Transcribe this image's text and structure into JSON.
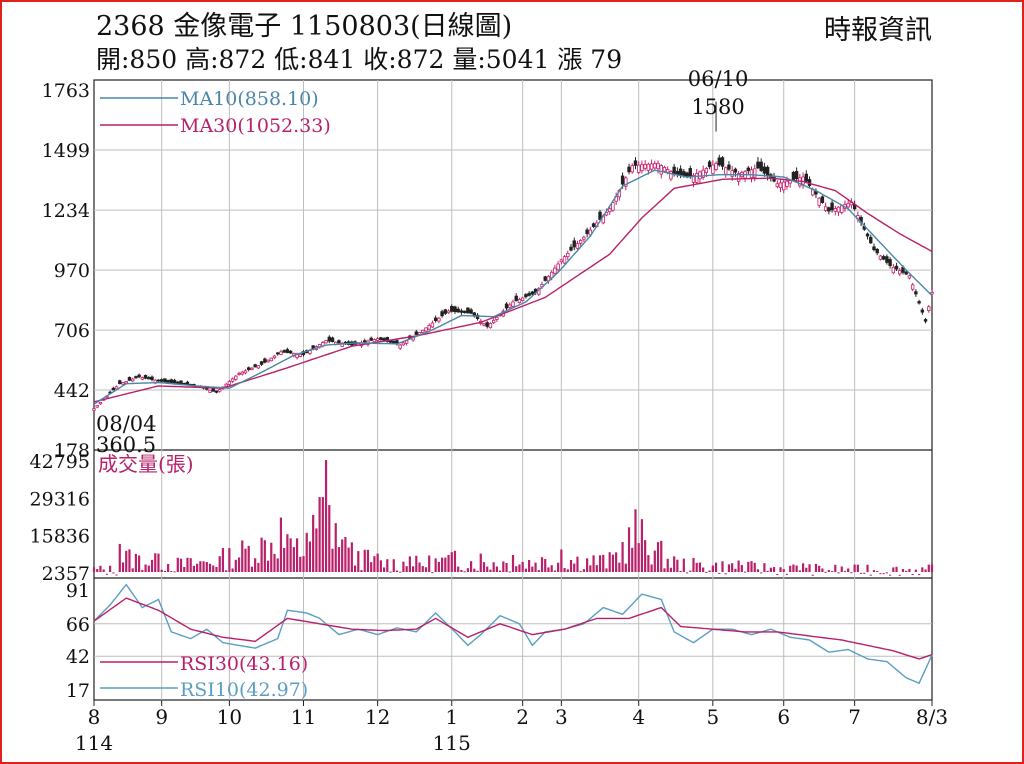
{
  "header": {
    "title": "2368  金像電子 1150803(日線圖)",
    "source": "時報資訊",
    "ohlc": "開:850 高:872 低:841 收:872 量:5041 漲 79"
  },
  "colors": {
    "frame": "#e0201c",
    "ma10": "#4a86a8",
    "ma30": "#b8206a",
    "up": "#c8206a",
    "down": "#222222",
    "volume": "#b8206a",
    "rsi10": "#5a9ec2",
    "rsi30": "#b8206a",
    "grid": "#bdbdbd"
  },
  "chart_data": [
    {
      "type": "line",
      "name": "price",
      "yticks": [
        "1763",
        "1499",
        "1234",
        "970",
        "706",
        "442",
        "178"
      ],
      "ylim": [
        178,
        1763
      ],
      "legend": [
        {
          "label": "MA10(858.10)",
          "series": "ma10"
        },
        {
          "label": "MA30(1052.33)",
          "series": "ma30"
        }
      ],
      "annotations": [
        {
          "date": "06/10",
          "value": "1580"
        },
        {
          "date": "08/04",
          "value": "360.5"
        }
      ],
      "anchors": [
        [
          0,
          360
        ],
        [
          8,
          470
        ],
        [
          14,
          500
        ],
        [
          20,
          482
        ],
        [
          27,
          470
        ],
        [
          33,
          455
        ],
        [
          38,
          432
        ],
        [
          45,
          515
        ],
        [
          52,
          555
        ],
        [
          58,
          610
        ],
        [
          65,
          598
        ],
        [
          72,
          660
        ],
        [
          80,
          640
        ],
        [
          88,
          668
        ],
        [
          95,
          640
        ],
        [
          102,
          705
        ],
        [
          110,
          790
        ],
        [
          117,
          780
        ],
        [
          122,
          722
        ],
        [
          130,
          830
        ],
        [
          137,
          870
        ],
        [
          145,
          1015
        ],
        [
          152,
          1115
        ],
        [
          160,
          1240
        ],
        [
          167,
          1430
        ],
        [
          175,
          1440
        ],
        [
          180,
          1395
        ],
        [
          185,
          1380
        ],
        [
          193,
          1440
        ],
        [
          200,
          1395
        ],
        [
          206,
          1420
        ],
        [
          212,
          1350
        ],
        [
          220,
          1380
        ],
        [
          228,
          1230
        ],
        [
          235,
          1270
        ],
        [
          242,
          1060
        ],
        [
          247,
          990
        ],
        [
          253,
          945
        ],
        [
          258,
          745
        ],
        [
          260,
          872
        ]
      ],
      "ma10": [
        [
          0,
          380
        ],
        [
          10,
          470
        ],
        [
          20,
          475
        ],
        [
          32,
          460
        ],
        [
          42,
          450
        ],
        [
          52,
          520
        ],
        [
          62,
          595
        ],
        [
          72,
          640
        ],
        [
          82,
          650
        ],
        [
          94,
          645
        ],
        [
          104,
          700
        ],
        [
          114,
          770
        ],
        [
          124,
          765
        ],
        [
          134,
          830
        ],
        [
          144,
          960
        ],
        [
          154,
          1120
        ],
        [
          164,
          1340
        ],
        [
          174,
          1410
        ],
        [
          184,
          1380
        ],
        [
          194,
          1390
        ],
        [
          204,
          1390
        ],
        [
          214,
          1380
        ],
        [
          224,
          1320
        ],
        [
          234,
          1240
        ],
        [
          244,
          1090
        ],
        [
          252,
          970
        ],
        [
          260,
          858
        ]
      ],
      "ma30": [
        [
          0,
          390
        ],
        [
          20,
          460
        ],
        [
          40,
          450
        ],
        [
          60,
          540
        ],
        [
          80,
          635
        ],
        [
          100,
          680
        ],
        [
          120,
          740
        ],
        [
          140,
          850
        ],
        [
          160,
          1040
        ],
        [
          170,
          1200
        ],
        [
          180,
          1330
        ],
        [
          195,
          1370
        ],
        [
          210,
          1375
        ],
        [
          220,
          1360
        ],
        [
          230,
          1320
        ],
        [
          240,
          1220
        ],
        [
          250,
          1130
        ],
        [
          260,
          1052
        ]
      ]
    },
    {
      "type": "bar",
      "name": "volume",
      "series_label": "成交量(張)",
      "yticks": [
        "42795",
        "29316",
        "15836",
        "2357"
      ],
      "ylim": [
        2357,
        42795
      ],
      "peaks": [
        [
          8,
          12500
        ],
        [
          20,
          9000
        ],
        [
          29,
          7500
        ],
        [
          40,
          11000
        ],
        [
          58,
          22000
        ],
        [
          60,
          16000
        ],
        [
          63,
          14500
        ],
        [
          66,
          16500
        ],
        [
          72,
          42795
        ],
        [
          75,
          20000
        ],
        [
          78,
          15000
        ],
        [
          88,
          9000
        ],
        [
          98,
          8000
        ],
        [
          112,
          10000
        ],
        [
          120,
          9000
        ],
        [
          130,
          8500
        ],
        [
          145,
          10500
        ],
        [
          160,
          9500
        ],
        [
          168,
          25000
        ],
        [
          180,
          8000
        ],
        [
          200,
          6500
        ],
        [
          220,
          5500
        ],
        [
          240,
          5000
        ],
        [
          260,
          5041
        ]
      ],
      "values_note": "reconstructed daily volume shape"
    },
    {
      "type": "line",
      "name": "rsi",
      "yticks": [
        "91",
        "66",
        "42",
        "17"
      ],
      "ylim": [
        17,
        91
      ],
      "legend": [
        {
          "label": "RSI30(43.16)",
          "series": "rsi30"
        },
        {
          "label": "RSI10(42.97)",
          "series": "rsi10"
        }
      ],
      "rsi10": [
        [
          0,
          68
        ],
        [
          5,
          80
        ],
        [
          10,
          95
        ],
        [
          15,
          78
        ],
        [
          20,
          84
        ],
        [
          24,
          60
        ],
        [
          30,
          55
        ],
        [
          35,
          62
        ],
        [
          40,
          52
        ],
        [
          45,
          50
        ],
        [
          50,
          48
        ],
        [
          57,
          55
        ],
        [
          60,
          76
        ],
        [
          66,
          74
        ],
        [
          70,
          70
        ],
        [
          76,
          58
        ],
        [
          82,
          62
        ],
        [
          88,
          58
        ],
        [
          94,
          63
        ],
        [
          100,
          60
        ],
        [
          106,
          74
        ],
        [
          112,
          60
        ],
        [
          116,
          50
        ],
        [
          120,
          58
        ],
        [
          126,
          72
        ],
        [
          132,
          66
        ],
        [
          136,
          50
        ],
        [
          140,
          60
        ],
        [
          146,
          62
        ],
        [
          152,
          66
        ],
        [
          158,
          78
        ],
        [
          164,
          73
        ],
        [
          170,
          88
        ],
        [
          176,
          84
        ],
        [
          180,
          60
        ],
        [
          186,
          52
        ],
        [
          192,
          62
        ],
        [
          198,
          62
        ],
        [
          204,
          58
        ],
        [
          210,
          62
        ],
        [
          216,
          56
        ],
        [
          222,
          54
        ],
        [
          228,
          45
        ],
        [
          234,
          47
        ],
        [
          240,
          40
        ],
        [
          246,
          38
        ],
        [
          252,
          26
        ],
        [
          256,
          22
        ],
        [
          260,
          42.97
        ]
      ],
      "rsi30": [
        [
          0,
          68
        ],
        [
          10,
          85
        ],
        [
          20,
          76
        ],
        [
          30,
          62
        ],
        [
          40,
          56
        ],
        [
          50,
          53
        ],
        [
          60,
          70
        ],
        [
          70,
          66
        ],
        [
          80,
          62
        ],
        [
          90,
          61
        ],
        [
          100,
          62
        ],
        [
          106,
          70
        ],
        [
          116,
          56
        ],
        [
          126,
          66
        ],
        [
          136,
          58
        ],
        [
          146,
          62
        ],
        [
          156,
          70
        ],
        [
          166,
          70
        ],
        [
          176,
          78
        ],
        [
          182,
          64
        ],
        [
          192,
          62
        ],
        [
          202,
          60
        ],
        [
          212,
          60
        ],
        [
          222,
          57
        ],
        [
          232,
          54
        ],
        [
          240,
          50
        ],
        [
          248,
          46
        ],
        [
          256,
          40
        ],
        [
          260,
          43.16
        ]
      ]
    }
  ],
  "xaxis": {
    "ticks": [
      {
        "label": "8",
        "i": 0
      },
      {
        "label": "9",
        "i": 21
      },
      {
        "label": "10",
        "i": 42
      },
      {
        "label": "11",
        "i": 65
      },
      {
        "label": "12",
        "i": 88
      },
      {
        "label": "1",
        "i": 111
      },
      {
        "label": "2",
        "i": 133
      },
      {
        "label": "3",
        "i": 145
      },
      {
        "label": "4",
        "i": 169
      },
      {
        "label": "5",
        "i": 192
      },
      {
        "label": "6",
        "i": 214
      },
      {
        "label": "7",
        "i": 236
      },
      {
        "label": "8/3",
        "i": 260
      }
    ],
    "sublabels": [
      {
        "label": "114",
        "i": 0
      },
      {
        "label": "115",
        "i": 111
      }
    ]
  }
}
